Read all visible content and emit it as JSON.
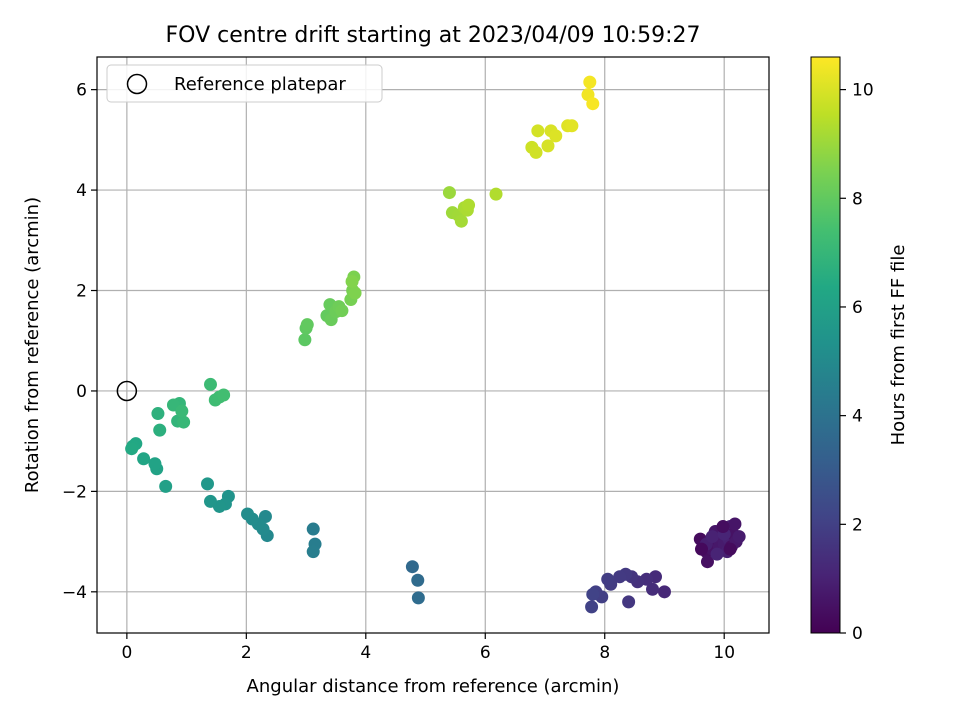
{
  "chart_data": {
    "type": "scatter",
    "title": "FOV centre drift starting at 2023/04/09 10:59:27",
    "xlabel": "Angular distance from reference (arcmin)",
    "ylabel": "Rotation from reference (arcmin)",
    "xlim": [
      -0.5,
      10.75
    ],
    "ylim": [
      -4.82,
      6.65
    ],
    "xticks": [
      0,
      2,
      4,
      6,
      8,
      10
    ],
    "yticks": [
      -4,
      -2,
      0,
      2,
      4,
      6
    ],
    "grid": true,
    "legend": {
      "placement": "top-left",
      "entries": [
        "Reference platepar"
      ]
    },
    "reference_point": {
      "x": 0,
      "y": 0,
      "marker": "open-circle"
    },
    "colorbar": {
      "label": "Hours from first FF file",
      "range": [
        0,
        10.6
      ],
      "ticks": [
        0,
        2,
        4,
        6,
        8,
        10
      ],
      "colormap": "viridis"
    },
    "series": [
      {
        "color_by": "hours",
        "points": [
          {
            "x": 9.6,
            "y": -2.95,
            "c": 0.3
          },
          {
            "x": 9.65,
            "y": -3.1,
            "c": 0.35
          },
          {
            "x": 9.7,
            "y": -3.2,
            "c": 0.4
          },
          {
            "x": 9.72,
            "y": -3.4,
            "c": 0.45
          },
          {
            "x": 9.75,
            "y": -3.0,
            "c": 0.5
          },
          {
            "x": 9.8,
            "y": -3.15,
            "c": 0.55
          },
          {
            "x": 9.85,
            "y": -2.8,
            "c": 0.6
          },
          {
            "x": 9.9,
            "y": -2.95,
            "c": 0.65
          },
          {
            "x": 9.92,
            "y": -3.1,
            "c": 0.7
          },
          {
            "x": 9.95,
            "y": -2.9,
            "c": 0.75
          },
          {
            "x": 10.0,
            "y": -3.05,
            "c": 0.8
          },
          {
            "x": 10.02,
            "y": -2.75,
            "c": 0.85
          },
          {
            "x": 10.05,
            "y": -3.2,
            "c": 0.9
          },
          {
            "x": 10.08,
            "y": -2.95,
            "c": 0.95
          },
          {
            "x": 10.1,
            "y": -2.7,
            "c": 1.0
          },
          {
            "x": 10.12,
            "y": -3.1,
            "c": 0.4
          },
          {
            "x": 10.15,
            "y": -2.85,
            "c": 0.5
          },
          {
            "x": 10.18,
            "y": -2.65,
            "c": 0.6
          },
          {
            "x": 10.2,
            "y": -3.0,
            "c": 0.7
          },
          {
            "x": 10.25,
            "y": -2.9,
            "c": 0.8
          },
          {
            "x": 9.7,
            "y": -3.05,
            "c": 0.9
          },
          {
            "x": 9.8,
            "y": -2.9,
            "c": 1.0
          },
          {
            "x": 9.88,
            "y": -3.25,
            "c": 1.05
          },
          {
            "x": 10.0,
            "y": -2.85,
            "c": 1.1
          },
          {
            "x": 9.62,
            "y": -3.15,
            "c": 0.25
          },
          {
            "x": 10.1,
            "y": -3.15,
            "c": 0.3
          },
          {
            "x": 9.98,
            "y": -2.7,
            "c": 0.35
          },
          {
            "x": 9.0,
            "y": -4.0,
            "c": 1.2
          },
          {
            "x": 8.85,
            "y": -3.7,
            "c": 1.3
          },
          {
            "x": 8.8,
            "y": -3.95,
            "c": 1.35
          },
          {
            "x": 8.7,
            "y": -3.75,
            "c": 1.4
          },
          {
            "x": 8.55,
            "y": -3.8,
            "c": 1.5
          },
          {
            "x": 8.45,
            "y": -3.7,
            "c": 1.6
          },
          {
            "x": 8.4,
            "y": -4.2,
            "c": 1.7
          },
          {
            "x": 8.35,
            "y": -3.65,
            "c": 1.75
          },
          {
            "x": 8.25,
            "y": -3.7,
            "c": 1.8
          },
          {
            "x": 8.1,
            "y": -3.85,
            "c": 1.85
          },
          {
            "x": 8.05,
            "y": -3.75,
            "c": 1.9
          },
          {
            "x": 7.95,
            "y": -4.1,
            "c": 1.95
          },
          {
            "x": 7.85,
            "y": -4.0,
            "c": 2.0
          },
          {
            "x": 7.78,
            "y": -4.3,
            "c": 2.05
          },
          {
            "x": 7.8,
            "y": -4.05,
            "c": 2.1
          },
          {
            "x": 4.78,
            "y": -3.5,
            "c": 3.6
          },
          {
            "x": 4.87,
            "y": -3.77,
            "c": 3.7
          },
          {
            "x": 4.88,
            "y": -4.12,
            "c": 3.75
          },
          {
            "x": 3.12,
            "y": -2.75,
            "c": 4.4
          },
          {
            "x": 3.15,
            "y": -3.05,
            "c": 4.45
          },
          {
            "x": 3.12,
            "y": -3.2,
            "c": 4.5
          },
          {
            "x": 2.35,
            "y": -2.88,
            "c": 4.9
          },
          {
            "x": 2.32,
            "y": -2.5,
            "c": 4.95
          },
          {
            "x": 2.28,
            "y": -2.75,
            "c": 5.0
          },
          {
            "x": 2.2,
            "y": -2.65,
            "c": 5.05
          },
          {
            "x": 2.1,
            "y": -2.55,
            "c": 5.1
          },
          {
            "x": 2.02,
            "y": -2.45,
            "c": 5.15
          },
          {
            "x": 1.7,
            "y": -2.1,
            "c": 5.4
          },
          {
            "x": 1.65,
            "y": -2.25,
            "c": 5.45
          },
          {
            "x": 1.55,
            "y": -2.3,
            "c": 5.5
          },
          {
            "x": 1.4,
            "y": -2.2,
            "c": 5.55
          },
          {
            "x": 1.35,
            "y": -1.85,
            "c": 5.6
          },
          {
            "x": 0.65,
            "y": -1.9,
            "c": 6.0
          },
          {
            "x": 0.5,
            "y": -1.55,
            "c": 6.1
          },
          {
            "x": 0.47,
            "y": -1.45,
            "c": 6.15
          },
          {
            "x": 0.28,
            "y": -1.35,
            "c": 6.2
          },
          {
            "x": 0.15,
            "y": -1.05,
            "c": 6.3
          },
          {
            "x": 0.1,
            "y": -1.1,
            "c": 6.35
          },
          {
            "x": 0.08,
            "y": -1.15,
            "c": 6.4
          },
          {
            "x": 0.55,
            "y": -0.78,
            "c": 6.7
          },
          {
            "x": 0.52,
            "y": -0.45,
            "c": 6.75
          },
          {
            "x": 0.85,
            "y": -0.6,
            "c": 6.9
          },
          {
            "x": 0.88,
            "y": -0.25,
            "c": 6.95
          },
          {
            "x": 0.78,
            "y": -0.28,
            "c": 7.0
          },
          {
            "x": 0.95,
            "y": -0.62,
            "c": 7.05
          },
          {
            "x": 0.92,
            "y": -0.4,
            "c": 7.1
          },
          {
            "x": 1.4,
            "y": 0.13,
            "c": 7.2
          },
          {
            "x": 1.48,
            "y": -0.18,
            "c": 7.25
          },
          {
            "x": 1.55,
            "y": -0.12,
            "c": 7.3
          },
          {
            "x": 1.62,
            "y": -0.08,
            "c": 7.35
          },
          {
            "x": 2.98,
            "y": 1.02,
            "c": 7.9
          },
          {
            "x": 3.0,
            "y": 1.25,
            "c": 7.95
          },
          {
            "x": 3.02,
            "y": 1.32,
            "c": 8.0
          },
          {
            "x": 3.35,
            "y": 1.5,
            "c": 8.05
          },
          {
            "x": 3.4,
            "y": 1.72,
            "c": 8.1
          },
          {
            "x": 3.42,
            "y": 1.42,
            "c": 8.15
          },
          {
            "x": 3.5,
            "y": 1.58,
            "c": 8.2
          },
          {
            "x": 3.55,
            "y": 1.68,
            "c": 8.25
          },
          {
            "x": 3.6,
            "y": 1.6,
            "c": 8.3
          },
          {
            "x": 3.75,
            "y": 1.82,
            "c": 8.4
          },
          {
            "x": 3.78,
            "y": 2.0,
            "c": 8.45
          },
          {
            "x": 3.8,
            "y": 2.27,
            "c": 8.5
          },
          {
            "x": 3.82,
            "y": 1.95,
            "c": 8.55
          },
          {
            "x": 3.77,
            "y": 2.18,
            "c": 8.6
          },
          {
            "x": 5.4,
            "y": 3.95,
            "c": 9.0
          },
          {
            "x": 5.45,
            "y": 3.55,
            "c": 9.05
          },
          {
            "x": 5.55,
            "y": 3.5,
            "c": 9.1
          },
          {
            "x": 5.6,
            "y": 3.38,
            "c": 9.15
          },
          {
            "x": 5.65,
            "y": 3.65,
            "c": 9.2
          },
          {
            "x": 5.7,
            "y": 3.6,
            "c": 9.25
          },
          {
            "x": 5.72,
            "y": 3.7,
            "c": 9.3
          },
          {
            "x": 6.18,
            "y": 3.92,
            "c": 9.35
          },
          {
            "x": 6.78,
            "y": 4.85,
            "c": 9.8
          },
          {
            "x": 6.85,
            "y": 4.75,
            "c": 9.85
          },
          {
            "x": 6.88,
            "y": 5.18,
            "c": 9.9
          },
          {
            "x": 7.05,
            "y": 4.88,
            "c": 9.95
          },
          {
            "x": 7.1,
            "y": 5.18,
            "c": 10.0
          },
          {
            "x": 7.18,
            "y": 5.08,
            "c": 10.05
          },
          {
            "x": 7.38,
            "y": 5.28,
            "c": 10.1
          },
          {
            "x": 7.45,
            "y": 5.28,
            "c": 10.15
          },
          {
            "x": 7.72,
            "y": 5.9,
            "c": 10.4
          },
          {
            "x": 7.75,
            "y": 6.15,
            "c": 10.45
          },
          {
            "x": 7.8,
            "y": 5.72,
            "c": 10.5
          }
        ]
      }
    ]
  }
}
